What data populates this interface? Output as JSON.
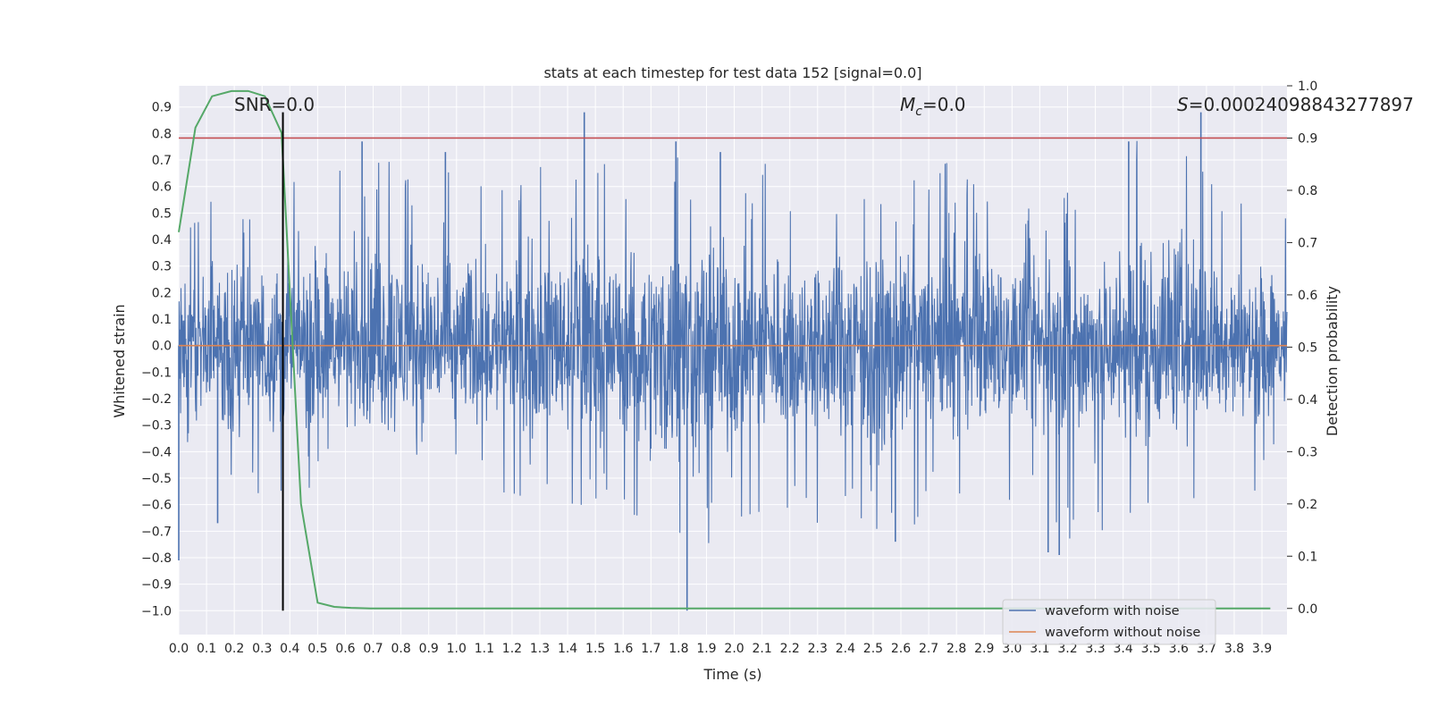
{
  "chart_data": {
    "type": "line",
    "title": "stats at each timestep for test data 152 [signal=0.0]",
    "xlabel": "Time (s)",
    "ylabel": "Whitened strain",
    "y2label": "Detection probability",
    "xlim": [
      0.0,
      3.99
    ],
    "ylim": [
      -1.09,
      0.98
    ],
    "y2lim": [
      -0.05,
      1.0
    ],
    "x_ticks": [
      "0.0",
      "0.1",
      "0.2",
      "0.3",
      "0.4",
      "0.5",
      "0.6",
      "0.7",
      "0.8",
      "0.9",
      "1.0",
      "1.1",
      "1.2",
      "1.3",
      "1.4",
      "1.5",
      "1.6",
      "1.7",
      "1.8",
      "1.9",
      "2.0",
      "2.1",
      "2.2",
      "2.3",
      "2.4",
      "2.5",
      "2.6",
      "2.7",
      "2.8",
      "2.9",
      "3.0",
      "3.1",
      "3.2",
      "3.3",
      "3.4",
      "3.5",
      "3.6",
      "3.7",
      "3.8",
      "3.9"
    ],
    "y_ticks": [
      "0.9",
      "0.8",
      "0.7",
      "0.6",
      "0.5",
      "0.4",
      "0.3",
      "0.2",
      "0.1",
      "0.0",
      "−0.1",
      "−0.2",
      "−0.3",
      "−0.4",
      "−0.5",
      "−0.6",
      "−0.7",
      "−0.8",
      "−0.9",
      "−1.0"
    ],
    "y2_ticks": [
      "1.0",
      "0.9",
      "0.8",
      "0.7",
      "0.6",
      "0.5",
      "0.4",
      "0.3",
      "0.2",
      "0.1",
      "0.0"
    ],
    "grid": true,
    "legend_position": "lower-right",
    "annotations": {
      "snr": "SNR=0.0",
      "mc_symbol": "M",
      "mc_sub": "c",
      "mc_value": "=0.0",
      "s_symbol": "S",
      "s_value": "=0.00024098843277897"
    },
    "noise_envelope": {
      "x": [
        0.0,
        0.2,
        0.4,
        0.6,
        0.8,
        1.0,
        1.2,
        1.4,
        1.6,
        1.8,
        2.0,
        2.2,
        2.4,
        2.6,
        2.8,
        3.0,
        3.2,
        3.4,
        3.6,
        3.8,
        3.99
      ],
      "upper": [
        0.5,
        0.58,
        0.63,
        0.77,
        0.73,
        0.67,
        0.62,
        0.88,
        0.59,
        0.78,
        0.74,
        0.68,
        0.66,
        0.62,
        0.72,
        0.68,
        0.58,
        0.77,
        0.87,
        0.55,
        0.55
      ],
      "lower": [
        -0.81,
        -0.67,
        -0.55,
        -0.55,
        -0.65,
        -0.56,
        -0.58,
        -0.6,
        -0.64,
        -1.0,
        -0.68,
        -0.64,
        -0.74,
        -0.7,
        -0.64,
        -0.58,
        -0.79,
        -0.66,
        -0.62,
        -0.6,
        -0.5
      ]
    },
    "series": [
      {
        "name": "waveform with noise",
        "axis": "left",
        "color": "#4c72b0",
        "spikes": [
          {
            "x": 1.46,
            "y": 0.88
          },
          {
            "x": 3.68,
            "y": 0.88
          },
          {
            "x": 1.83,
            "y": -1.0
          },
          {
            "x": 0.66,
            "y": 0.77
          },
          {
            "x": 0.96,
            "y": 0.73
          },
          {
            "x": 1.79,
            "y": 0.77
          },
          {
            "x": 1.95,
            "y": 0.73
          },
          {
            "x": 3.42,
            "y": 0.77
          },
          {
            "x": 3.13,
            "y": -0.78
          },
          {
            "x": 3.17,
            "y": -0.79
          },
          {
            "x": 0.0,
            "y": -0.81
          },
          {
            "x": 2.58,
            "y": -0.74
          },
          {
            "x": 0.14,
            "y": -0.67
          }
        ]
      },
      {
        "name": "waveform without noise",
        "axis": "left",
        "color": "#dd8452",
        "x": [
          0.0,
          3.99
        ],
        "y": [
          0.0,
          0.0
        ]
      },
      {
        "axis": "right",
        "color": "#55a868",
        "x": [
          0.0,
          0.06,
          0.12,
          0.19,
          0.25,
          0.31,
          0.37,
          0.44,
          0.5,
          0.56,
          0.62,
          0.69,
          0.75,
          0.81,
          0.87,
          1.0,
          1.5,
          2.0,
          2.5,
          3.0,
          3.5,
          3.93
        ],
        "y": [
          0.72,
          0.92,
          0.98,
          0.99,
          0.99,
          0.98,
          0.91,
          0.2,
          0.011,
          0.003,
          0.001,
          0.0,
          0.0,
          0.0,
          0.0,
          0.0,
          0.0,
          0.0,
          0.0,
          0.0,
          0.0,
          0.0
        ]
      }
    ],
    "threshold": {
      "axis": "right",
      "y": 0.9,
      "color": "#c44e52"
    },
    "marker_line": {
      "x": 0.375,
      "y_from": -1.0,
      "y_to": 0.88,
      "color": "#000000"
    }
  }
}
